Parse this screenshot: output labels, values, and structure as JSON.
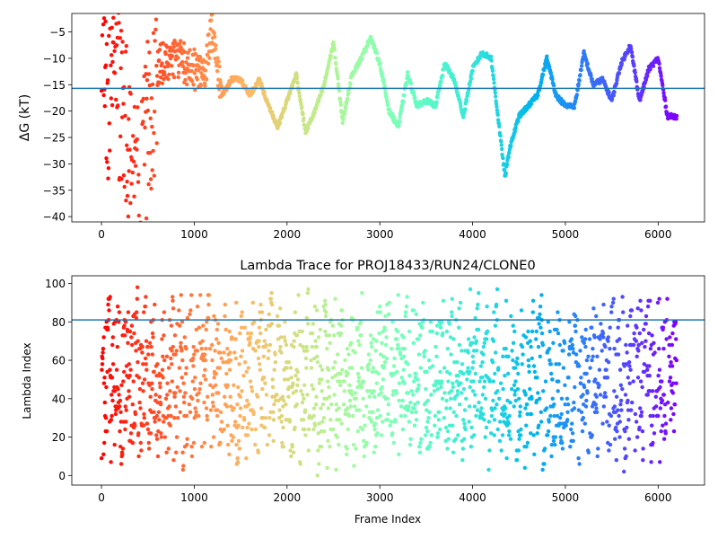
{
  "chart_data": [
    {
      "type": "scatter",
      "title": "",
      "xlabel": "",
      "ylabel": "ΔG (kT)",
      "xlim": [
        -320,
        6500
      ],
      "ylim": [
        -41,
        -1.5
      ],
      "x_ticks": [
        0,
        1000,
        2000,
        3000,
        4000,
        5000,
        6000
      ],
      "x_tick_labels": [
        "0",
        "1000",
        "2000",
        "3000",
        "4000",
        "5000",
        "6000"
      ],
      "y_ticks": [
        -40,
        -35,
        -30,
        -25,
        -20,
        -15,
        -10,
        -5
      ],
      "y_tick_labels": [
        "−40",
        "−35",
        "−30",
        "−25",
        "−20",
        "−15",
        "−10",
        "−5"
      ],
      "color_map": "rainbow (red at frame 0 → violet at last frame)",
      "frames": 6200,
      "hline": {
        "y": -15.7,
        "color": "#1f77b4"
      },
      "trace": [
        [
          0,
          -3
        ],
        [
          30,
          -6
        ],
        [
          60,
          -22
        ],
        [
          90,
          -14
        ],
        [
          120,
          -10
        ],
        [
          150,
          -8
        ],
        [
          200,
          -20
        ],
        [
          250,
          -25
        ],
        [
          300,
          -28
        ],
        [
          350,
          -32
        ],
        [
          400,
          -33
        ],
        [
          450,
          -34
        ],
        [
          500,
          -22
        ],
        [
          600,
          -12
        ],
        [
          700,
          -10
        ],
        [
          800,
          -10
        ],
        [
          900,
          -11
        ],
        [
          1000,
          -12
        ],
        [
          1100,
          -13
        ],
        [
          1200,
          -4
        ],
        [
          1300,
          -17
        ],
        [
          1400,
          -14
        ],
        [
          1500,
          -14
        ],
        [
          1600,
          -17
        ],
        [
          1700,
          -14
        ],
        [
          1800,
          -19
        ],
        [
          1900,
          -23
        ],
        [
          2000,
          -18
        ],
        [
          2100,
          -13
        ],
        [
          2200,
          -24
        ],
        [
          2300,
          -20
        ],
        [
          2400,
          -15
        ],
        [
          2500,
          -7
        ],
        [
          2600,
          -22
        ],
        [
          2700,
          -13
        ],
        [
          2800,
          -10
        ],
        [
          2900,
          -6
        ],
        [
          3000,
          -11
        ],
        [
          3100,
          -20
        ],
        [
          3200,
          -23
        ],
        [
          3300,
          -13
        ],
        [
          3400,
          -19
        ],
        [
          3500,
          -18
        ],
        [
          3600,
          -19
        ],
        [
          3700,
          -11
        ],
        [
          3800,
          -14
        ],
        [
          3900,
          -21
        ],
        [
          4000,
          -12
        ],
        [
          4100,
          -9
        ],
        [
          4200,
          -10
        ],
        [
          4300,
          -25
        ],
        [
          4350,
          -32.5
        ],
        [
          4400,
          -27
        ],
        [
          4500,
          -21
        ],
        [
          4600,
          -19
        ],
        [
          4700,
          -17
        ],
        [
          4800,
          -10
        ],
        [
          4900,
          -17
        ],
        [
          5000,
          -19
        ],
        [
          5100,
          -19
        ],
        [
          5200,
          -9
        ],
        [
          5300,
          -15
        ],
        [
          5400,
          -14
        ],
        [
          5500,
          -18
        ],
        [
          5600,
          -11
        ],
        [
          5700,
          -7.5
        ],
        [
          5800,
          -18
        ],
        [
          5900,
          -12
        ],
        [
          6000,
          -10
        ],
        [
          6100,
          -21
        ],
        [
          6200,
          -21
        ]
      ]
    },
    {
      "type": "scatter",
      "title": "Lambda Trace for PROJ18433/RUN24/CLONE0",
      "xlabel": "Frame Index",
      "ylabel": "Lambda Index",
      "xlim": [
        -320,
        6500
      ],
      "ylim": [
        -5,
        104
      ],
      "x_ticks": [
        0,
        1000,
        2000,
        3000,
        4000,
        5000,
        6000
      ],
      "x_tick_labels": [
        "0",
        "1000",
        "2000",
        "3000",
        "4000",
        "5000",
        "6000"
      ],
      "y_ticks": [
        0,
        20,
        40,
        60,
        80,
        100
      ],
      "y_tick_labels": [
        "0",
        "20",
        "40",
        "60",
        "80",
        "100"
      ],
      "color_map": "rainbow (red at frame 0 → violet at last frame)",
      "frames": 6200,
      "lambda_range": [
        0,
        99
      ],
      "hline": {
        "y": 81,
        "color": "#1f77b4"
      }
    }
  ]
}
